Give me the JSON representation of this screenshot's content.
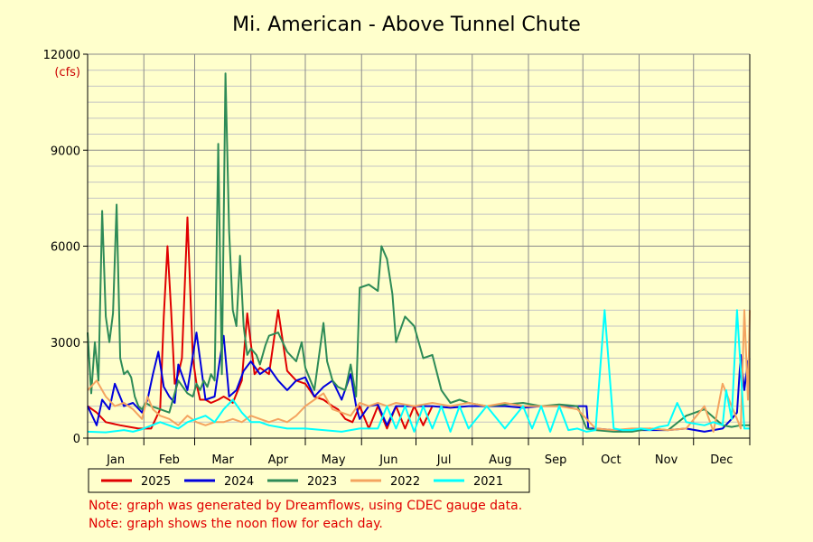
{
  "chart_data": {
    "type": "line",
    "title": "Mi. American - Above Tunnel Chute",
    "ylabel_unit": "(cfs)",
    "ylim": [
      0,
      12000
    ],
    "y_ticks": [
      0,
      3000,
      6000,
      9000,
      12000
    ],
    "y_tick_labels": [
      "0",
      "3000",
      "6000",
      "9000",
      "12000"
    ],
    "x_domain_days": [
      0,
      365
    ],
    "months": [
      "Jan",
      "Feb",
      "Mar",
      "Apr",
      "May",
      "Jun",
      "Jul",
      "Aug",
      "Sep",
      "Oct",
      "Nov",
      "Dec"
    ],
    "grid": true,
    "legend_position": "bottom",
    "series": [
      {
        "name": "2025",
        "color": "#e00000",
        "x": [
          0,
          5,
          10,
          18,
          28,
          35,
          40,
          42,
          44,
          46,
          48,
          50,
          52,
          55,
          58,
          60,
          62,
          65,
          68,
          72,
          75,
          78,
          80,
          85,
          88,
          92,
          95,
          100,
          105,
          110,
          115,
          120,
          125,
          130,
          135,
          138,
          142,
          146,
          150,
          155,
          160,
          165,
          170,
          175,
          180,
          185,
          190
        ],
        "y": [
          1000,
          800,
          500,
          400,
          300,
          300,
          900,
          3800,
          6000,
          4000,
          1700,
          2000,
          2500,
          6900,
          2500,
          1700,
          1200,
          1200,
          1100,
          1200,
          1300,
          1200,
          1100,
          1800,
          3900,
          2000,
          2200,
          2000,
          4000,
          2100,
          1800,
          1700,
          1300,
          1200,
          1000,
          900,
          600,
          500,
          1000,
          300,
          1000,
          300,
          1000,
          300,
          1000,
          400,
          1000
        ]
      },
      {
        "name": "2024",
        "color": "#0000dd",
        "x": [
          0,
          5,
          8,
          12,
          15,
          20,
          25,
          30,
          33,
          36,
          39,
          42,
          45,
          48,
          50,
          55,
          60,
          65,
          70,
          73,
          75,
          78,
          82,
          86,
          90,
          95,
          100,
          105,
          110,
          115,
          120,
          125,
          130,
          135,
          140,
          145,
          148,
          150,
          155,
          160,
          165,
          170,
          180,
          190,
          200,
          210,
          220,
          230,
          240,
          250,
          260,
          270,
          275,
          276,
          280,
          290,
          300,
          310,
          320,
          330,
          340,
          350,
          355,
          358,
          360,
          362,
          364,
          365
        ],
        "y": [
          1000,
          400,
          1200,
          900,
          1700,
          1000,
          1100,
          800,
          1200,
          2000,
          2700,
          1600,
          1300,
          1100,
          2300,
          1500,
          3300,
          1200,
          1300,
          2500,
          3200,
          1300,
          1500,
          2100,
          2400,
          2000,
          2200,
          1800,
          1500,
          1800,
          1900,
          1300,
          1600,
          1800,
          1200,
          2000,
          1000,
          600,
          1000,
          1050,
          400,
          1000,
          1000,
          1000,
          950,
          1000,
          1000,
          1000,
          950,
          1000,
          1000,
          1000,
          1000,
          300,
          300,
          250,
          250,
          250,
          250,
          300,
          200,
          300,
          600,
          800,
          2600,
          1500,
          2400,
          2500
        ]
      },
      {
        "name": "2023",
        "color": "#2e8b57",
        "x": [
          0,
          2,
          4,
          6,
          8,
          10,
          12,
          14,
          16,
          18,
          20,
          22,
          24,
          26,
          28,
          30,
          32,
          35,
          40,
          45,
          50,
          55,
          58,
          60,
          62,
          64,
          66,
          68,
          70,
          72,
          74,
          76,
          78,
          80,
          82,
          84,
          86,
          88,
          90,
          93,
          95,
          98,
          100,
          105,
          110,
          115,
          118,
          120,
          125,
          130,
          132,
          135,
          138,
          142,
          145,
          148,
          150,
          155,
          160,
          162,
          165,
          168,
          170,
          175,
          180,
          185,
          190,
          195,
          200,
          205,
          210,
          220,
          230,
          240,
          250,
          260,
          270,
          275,
          280,
          290,
          300,
          310,
          320,
          330,
          340,
          350,
          355,
          360,
          365
        ],
        "y": [
          3300,
          1400,
          3000,
          1800,
          7100,
          3800,
          3000,
          3900,
          7300,
          2500,
          2000,
          2100,
          1900,
          1300,
          1000,
          900,
          1100,
          1000,
          900,
          800,
          1800,
          1400,
          1300,
          1700,
          1500,
          1800,
          1600,
          2000,
          1800,
          9200,
          2000,
          11400,
          6500,
          4000,
          3500,
          5700,
          3500,
          2600,
          2800,
          2600,
          2300,
          2900,
          3200,
          3300,
          2700,
          2400,
          3000,
          2200,
          1500,
          3600,
          2400,
          1800,
          1600,
          1500,
          2300,
          1300,
          4700,
          4800,
          4600,
          6000,
          5600,
          4500,
          3000,
          3800,
          3500,
          2500,
          2600,
          1500,
          1100,
          1200,
          1100,
          1000,
          1050,
          1100,
          1000,
          1050,
          1000,
          300,
          250,
          200,
          200,
          300,
          250,
          700,
          900,
          400,
          350,
          400,
          400
        ]
      },
      {
        "name": "2022",
        "color": "#f4a460",
        "x": [
          0,
          5,
          10,
          15,
          20,
          25,
          30,
          33,
          36,
          40,
          45,
          50,
          55,
          60,
          65,
          70,
          75,
          80,
          85,
          90,
          95,
          100,
          105,
          110,
          115,
          120,
          125,
          130,
          135,
          140,
          145,
          150,
          155,
          160,
          165,
          170,
          180,
          190,
          200,
          210,
          220,
          230,
          240,
          250,
          260,
          270,
          280,
          290,
          300,
          310,
          320,
          330,
          340,
          345,
          350,
          355,
          358,
          360,
          362,
          364,
          365
        ],
        "y": [
          1500,
          1800,
          1300,
          1000,
          1100,
          900,
          600,
          1300,
          900,
          700,
          600,
          400,
          700,
          500,
          400,
          500,
          500,
          600,
          500,
          700,
          600,
          500,
          600,
          500,
          700,
          1000,
          1200,
          1400,
          900,
          800,
          700,
          1100,
          1000,
          1100,
          1000,
          1100,
          1000,
          1100,
          1000,
          1100,
          1000,
          1100,
          1000,
          1000,
          1000,
          900,
          300,
          250,
          300,
          300,
          250,
          300,
          1000,
          200,
          1700,
          1000,
          600,
          300,
          4000,
          1200,
          4000
        ]
      },
      {
        "name": "2021",
        "color": "#00ffff",
        "x": [
          0,
          10,
          20,
          25,
          30,
          40,
          50,
          55,
          60,
          65,
          70,
          75,
          80,
          85,
          90,
          95,
          100,
          110,
          120,
          130,
          140,
          145,
          150,
          160,
          165,
          170,
          175,
          180,
          185,
          190,
          195,
          200,
          205,
          210,
          220,
          230,
          240,
          245,
          250,
          255,
          260,
          265,
          270,
          275,
          280,
          285,
          290,
          295,
          300,
          305,
          310,
          315,
          320,
          325,
          330,
          335,
          340,
          345,
          350,
          352,
          355,
          358,
          362,
          365
        ],
        "y": [
          200,
          180,
          250,
          200,
          280,
          500,
          300,
          500,
          600,
          700,
          500,
          900,
          1200,
          800,
          500,
          500,
          400,
          300,
          300,
          250,
          200,
          250,
          300,
          300,
          1000,
          300,
          1000,
          200,
          1000,
          300,
          1000,
          200,
          1000,
          300,
          1000,
          300,
          1000,
          300,
          1000,
          200,
          1000,
          250,
          300,
          200,
          250,
          4000,
          300,
          250,
          250,
          300,
          250,
          350,
          400,
          1100,
          500,
          450,
          400,
          500,
          400,
          1500,
          600,
          4000,
          300,
          300
        ]
      }
    ],
    "notes": [
      "Note: graph was generated by Dreamflows, using CDEC gauge data.",
      "Note: graph shows the noon flow for each day."
    ]
  }
}
